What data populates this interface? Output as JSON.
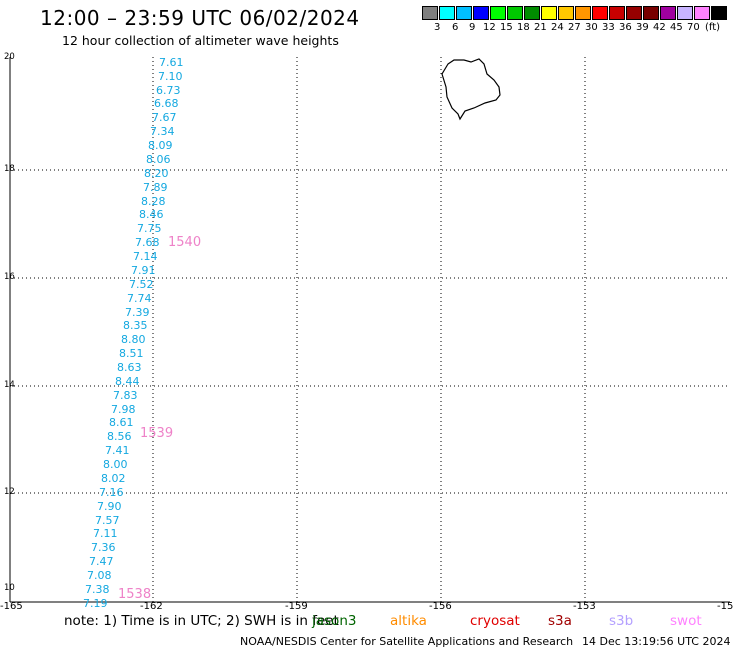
{
  "title": "12:00 – 23:59 UTC 06/02/2024",
  "subtitle": "12 hour collection of altimeter wave heights",
  "legend": {
    "colors": [
      "#7f7f7f",
      "#00ffff",
      "#00bfff",
      "#0000ff",
      "#00ff00",
      "#00c800",
      "#008c00",
      "#ffff00",
      "#ffc800",
      "#ff9600",
      "#ff0000",
      "#c80000",
      "#960000",
      "#780000",
      "#a000a0",
      "#c8b4ff",
      "#ff82ff",
      "#000000"
    ],
    "labels": [
      "3",
      "6",
      "9",
      "12",
      "15",
      "18",
      "21",
      "24",
      "27",
      "30",
      "33",
      "36",
      "39",
      "42",
      "45",
      "70",
      "(ft)"
    ]
  },
  "lat_labels": [
    "20",
    "18",
    "16",
    "14",
    "12",
    "10"
  ],
  "lon_labels": [
    "-165",
    "-162",
    "-159",
    "-156",
    "-153",
    "-15"
  ],
  "swh_values": [
    "7.61",
    "7.10",
    "6.73",
    "6.68",
    "7.67",
    "7.34",
    "8.09",
    "8.06",
    "8.20",
    "7.89",
    "8.28",
    "8.46",
    "7.75",
    "7.68",
    "7.14",
    "7.91",
    "7.52",
    "7.74",
    "7.39",
    "8.35",
    "8.80",
    "8.51",
    "8.63",
    "8.44",
    "7.83",
    "7.98",
    "8.61",
    "8.56",
    "7.41",
    "8.00",
    "8.02",
    "7.16",
    "7.90",
    "7.57",
    "7.11",
    "7.36",
    "7.47",
    "7.08",
    "7.38",
    "7.19"
  ],
  "passes": [
    "1540",
    "1539",
    "1538"
  ],
  "note": "note: 1) Time is in UTC; 2) SWH is in feet",
  "satellites": [
    {
      "name": "jason3",
      "color": "#006400"
    },
    {
      "name": "altika",
      "color": "#ff8c00"
    },
    {
      "name": "cryosat",
      "color": "#e00000"
    },
    {
      "name": "s3a",
      "color": "#a00000"
    },
    {
      "name": "s3b",
      "color": "#b4a0ff"
    },
    {
      "name": "swot",
      "color": "#ff82ff"
    }
  ],
  "footer": {
    "left": "NOAA/NESDIS Center for Satellite Applications and Research",
    "right": "14 Dec 13:19:56 UTC 2024"
  }
}
